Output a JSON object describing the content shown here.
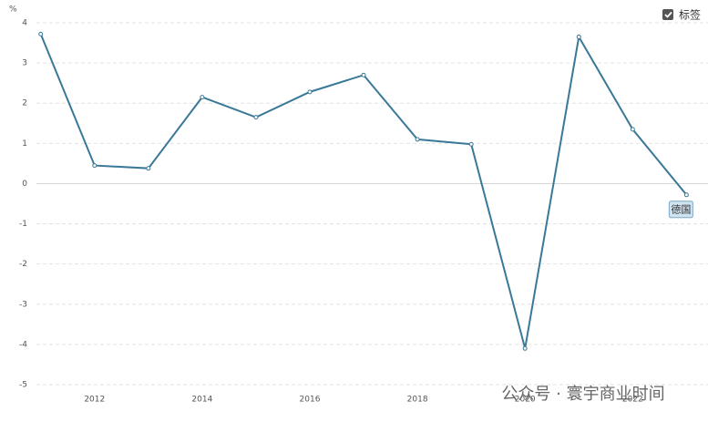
{
  "chart_data": {
    "type": "line",
    "y_unit": "%",
    "legend_toggle": "标签",
    "watermark": "公众号 · 寰宇商业时间",
    "x": [
      2011,
      2012,
      2013,
      2014,
      2015,
      2016,
      2017,
      2018,
      2019,
      2020,
      2021,
      2022,
      2023
    ],
    "series": [
      {
        "name": "德国",
        "color": "#3a7897",
        "values": [
          3.72,
          0.45,
          0.38,
          2.15,
          1.65,
          2.28,
          2.7,
          1.1,
          0.98,
          -4.1,
          3.65,
          1.35,
          -0.28
        ]
      }
    ],
    "xlim": [
      2010.92,
      2023.4
    ],
    "xticks": [
      2012,
      2014,
      2016,
      2018,
      2020,
      2022
    ],
    "ylim": [
      -5,
      4
    ],
    "yticks": [
      -5,
      -4,
      -3,
      -2,
      -1,
      0,
      1,
      2,
      3,
      4
    ],
    "grid": true
  }
}
